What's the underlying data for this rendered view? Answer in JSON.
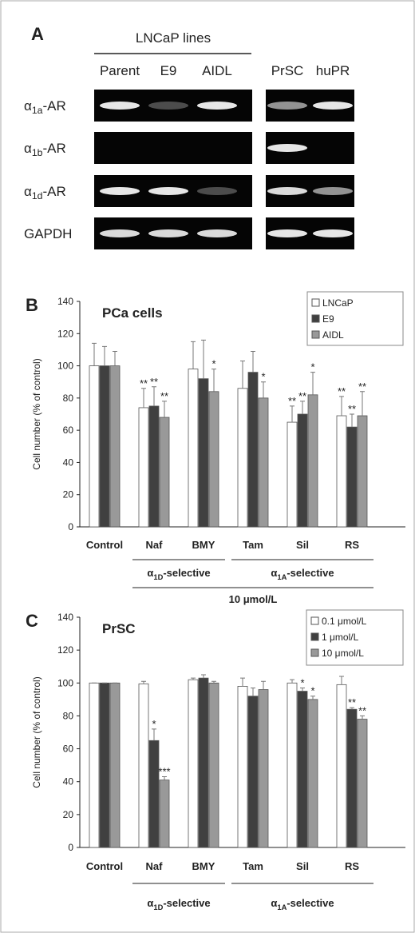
{
  "panel_a": {
    "label": "A",
    "group_label": "LNCaP lines",
    "lanes": [
      "Parent",
      "E9",
      "AIDL",
      "PrSC",
      "huPR"
    ],
    "rows": [
      {
        "main": "α",
        "sub": "1a",
        "rest": "-AR"
      },
      {
        "main": "α",
        "sub": "1b",
        "rest": "-AR"
      },
      {
        "main": "α",
        "sub": "1d",
        "rest": "-AR"
      },
      {
        "main": "GAPDH"
      }
    ]
  },
  "chart_data": [
    {
      "type": "bar",
      "panel_label": "B",
      "title": "PCa cells",
      "y_label": "Cell number (% of control)",
      "categories": [
        "Control",
        "Naf",
        "BMY",
        "Tam",
        "Sil",
        "RS"
      ],
      "series": [
        {
          "name": "LNCaP",
          "color": "#ffffff",
          "values": [
            100,
            74,
            98,
            86,
            65,
            69
          ],
          "errors": [
            14,
            12,
            17,
            17,
            10,
            12
          ],
          "labels": [
            null,
            "**",
            null,
            null,
            "**",
            "**"
          ]
        },
        {
          "name": "E9",
          "color": "#404040",
          "values": [
            100,
            75,
            92,
            96,
            70,
            62
          ],
          "errors": [
            12,
            12,
            24,
            13,
            8,
            8
          ],
          "labels": [
            null,
            "**",
            null,
            null,
            "**",
            "**"
          ]
        },
        {
          "name": "AIDL",
          "color": "#999999",
          "values": [
            100,
            68,
            84,
            80,
            82,
            69
          ],
          "errors": [
            9,
            10,
            14,
            10,
            14,
            15
          ],
          "labels": [
            null,
            "**",
            "*",
            "*",
            "*",
            "**"
          ]
        }
      ],
      "annotations": [
        {
          "main": "α",
          "sub": "1D",
          "rest": "-selective"
        },
        {
          "main": "α",
          "sub": "1A",
          "rest": "-selective"
        },
        {
          "main": "10 μmol/L"
        }
      ],
      "ylim": [
        0,
        140
      ],
      "yticks": [
        0,
        20,
        40,
        60,
        80,
        100,
        120,
        140
      ],
      "legend": "upper right"
    },
    {
      "type": "bar",
      "panel_label": "C",
      "title": "PrSC",
      "y_label": "Cell number (% of control)",
      "categories": [
        "Control",
        "Naf",
        "BMY",
        "Tam",
        "Sil",
        "RS"
      ],
      "series": [
        {
          "name": "0.1 μmol/L",
          "color": "#ffffff",
          "values": [
            100,
            99.5,
            102,
            98,
            100,
            99
          ],
          "errors": [
            0,
            1.5,
            1,
            5,
            2,
            5
          ],
          "labels": [
            null,
            null,
            null,
            null,
            null,
            null
          ]
        },
        {
          "name": "1 μmol/L",
          "color": "#404040",
          "values": [
            100,
            65,
            103,
            92,
            95,
            84
          ],
          "errors": [
            0,
            7,
            2,
            5,
            2,
            1
          ],
          "labels": [
            null,
            "*",
            null,
            null,
            "*",
            "**"
          ]
        },
        {
          "name": "10 μmol/L",
          "color": "#999999",
          "values": [
            100,
            41,
            100,
            96,
            90,
            78
          ],
          "errors": [
            0,
            2,
            1,
            5,
            2,
            2
          ],
          "labels": [
            null,
            "***",
            null,
            null,
            "*",
            "**"
          ]
        }
      ],
      "annotations": [
        {
          "main": "α",
          "sub": "1D",
          "rest": "-selective"
        },
        {
          "main": "α",
          "sub": "1A",
          "rest": "-selective"
        }
      ],
      "ylim": [
        0,
        140
      ],
      "yticks": [
        0,
        20,
        40,
        60,
        80,
        100,
        120,
        140
      ],
      "legend": "upper right"
    }
  ]
}
